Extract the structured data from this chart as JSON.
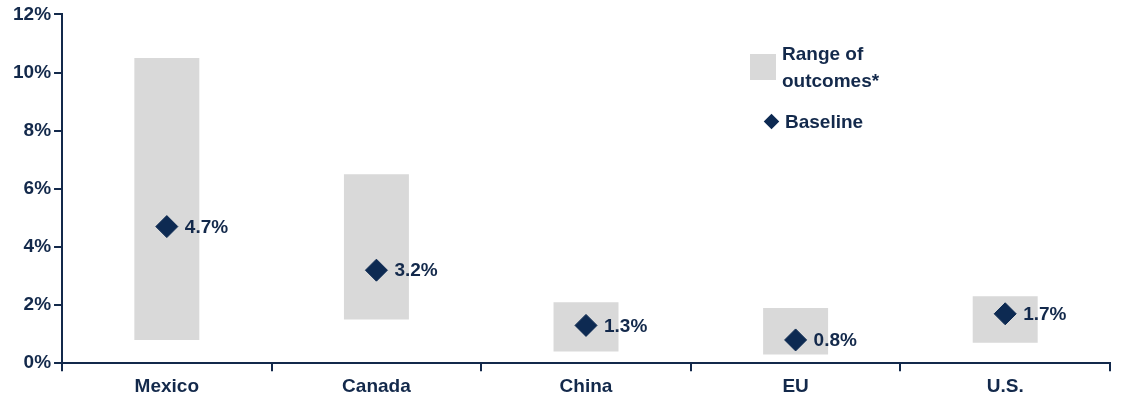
{
  "chart_data": {
    "type": "bar",
    "categories": [
      "Mexico",
      "Canada",
      "China",
      "EU",
      "U.S."
    ],
    "series": [
      {
        "name": "Range of outcomes*",
        "color": "#d9d9d9",
        "base": [
          0.8,
          1.5,
          0.4,
          0.3,
          0.7
        ],
        "values": [
          9.7,
          5.0,
          1.7,
          1.6,
          1.6
        ]
      },
      {
        "name": "Baseline",
        "type": "scatter",
        "color": "#0d2a52",
        "marker": "diamond",
        "x": [
          "Mexico",
          "Canada",
          "China",
          "EU",
          "U.S."
        ],
        "values": [
          4.7,
          3.2,
          1.3,
          0.8,
          1.7
        ],
        "value_labels": [
          "4.7%",
          "3.2%",
          "1.3%",
          "0.8%",
          "1.7%"
        ]
      }
    ],
    "ylim": [
      0,
      12
    ],
    "yticks": [
      {
        "value": 0,
        "label": "0%"
      },
      {
        "value": 2,
        "label": "2%"
      },
      {
        "value": 4,
        "label": "4%"
      },
      {
        "value": 6,
        "label": "6%"
      },
      {
        "value": 8,
        "label": "8%"
      },
      {
        "value": 10,
        "label": "10%"
      },
      {
        "value": 12,
        "label": "12%"
      }
    ],
    "grid": false,
    "legend": "top right"
  }
}
